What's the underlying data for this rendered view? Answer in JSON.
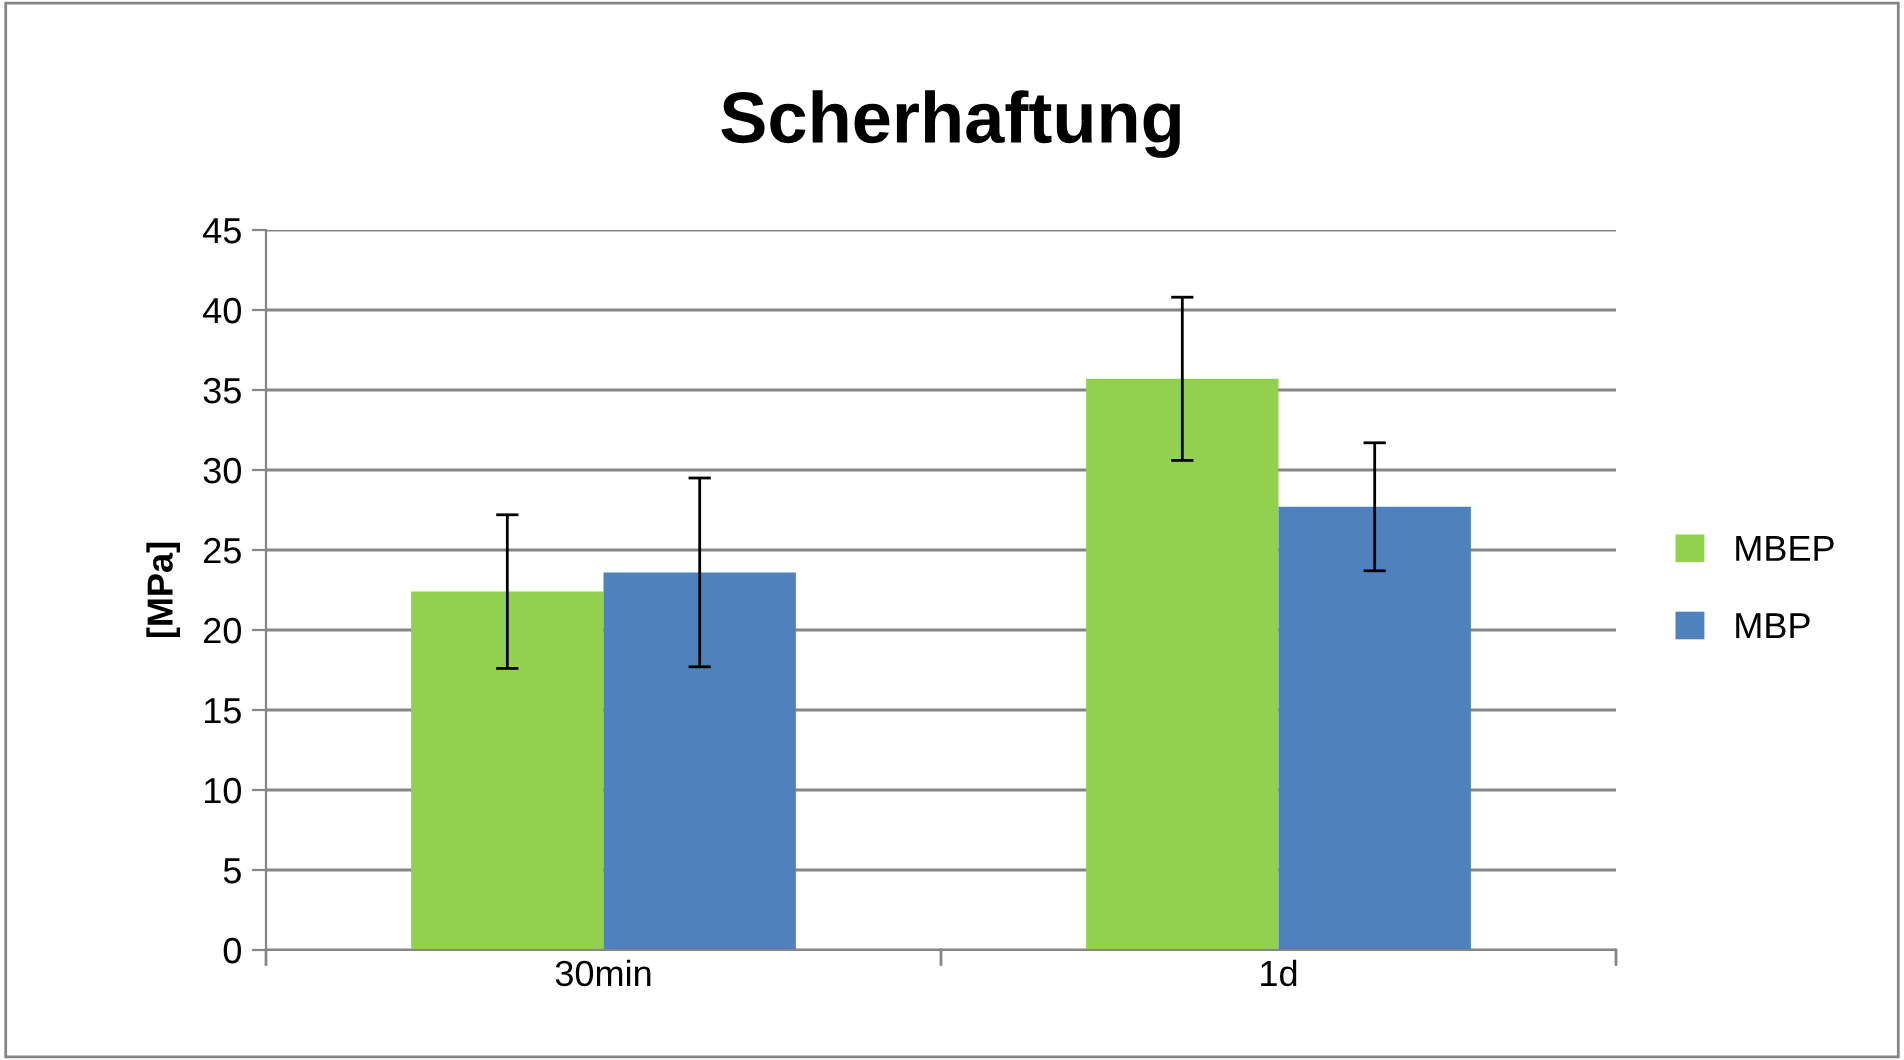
{
  "chart_data": {
    "type": "bar",
    "title": "Scherhaftung",
    "ylabel": "[MPa]",
    "categories": [
      "30min",
      "1d"
    ],
    "series": [
      {
        "name": "MBEP",
        "color": "#92d050",
        "values": [
          22.4,
          35.7
        ],
        "errors": [
          4.8,
          5.1
        ]
      },
      {
        "name": "MBP",
        "color": "#4f81bd",
        "values": [
          23.6,
          27.7
        ],
        "errors": [
          5.9,
          4.0
        ]
      }
    ],
    "ylim": [
      0,
      45
    ],
    "yticks": [
      0,
      5,
      10,
      15,
      20,
      25,
      30,
      35,
      40,
      45
    ],
    "grid": "y",
    "legend": "right"
  }
}
